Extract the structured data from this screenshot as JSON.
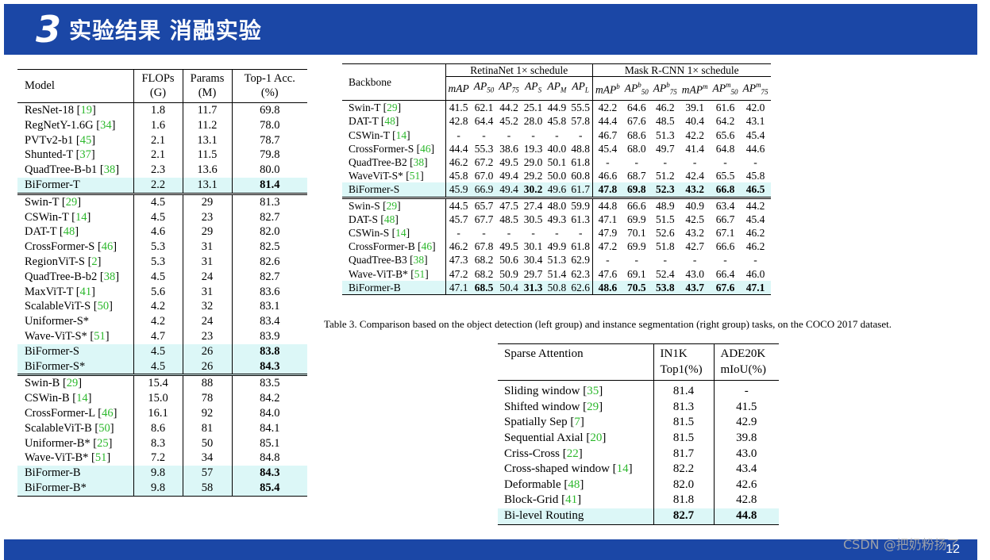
{
  "header": {
    "num": "3",
    "title": "实验结果  消融实验"
  },
  "footer": {
    "page": "12",
    "watermark": "CSDN @把奶粉扬了"
  },
  "table1": {
    "columns": [
      [
        "Model"
      ],
      [
        "FLOPs",
        "(G)"
      ],
      [
        "Params",
        "(M)"
      ],
      [
        "Top-1 Acc.",
        "(%)"
      ]
    ],
    "groups": [
      [
        {
          "name": "ResNet-18",
          "ref": "19",
          "flops": "1.8",
          "params": "11.7",
          "acc": "69.8"
        },
        {
          "name": "RegNetY-1.6G",
          "ref": "34",
          "flops": "1.6",
          "params": "11.2",
          "acc": "78.0"
        },
        {
          "name": "PVTv2-b1",
          "ref": "45",
          "flops": "2.1",
          "params": "13.1",
          "acc": "78.7"
        },
        {
          "name": "Shunted-T",
          "ref": "37",
          "flops": "2.1",
          "params": "11.5",
          "acc": "79.8"
        },
        {
          "name": "QuadTree-B-b1",
          "ref": "38",
          "flops": "2.3",
          "params": "13.6",
          "acc": "80.0"
        },
        {
          "name": "BiFormer-T",
          "flops": "2.2",
          "params": "13.1",
          "acc": "81.4",
          "hl": true,
          "bold": true
        }
      ],
      [
        {
          "name": "Swin-T",
          "ref": "29",
          "flops": "4.5",
          "params": "29",
          "acc": "81.3"
        },
        {
          "name": "CSWin-T",
          "ref": "14",
          "flops": "4.5",
          "params": "23",
          "acc": "82.7"
        },
        {
          "name": "DAT-T",
          "ref": "48",
          "flops": "4.6",
          "params": "29",
          "acc": "82.0"
        },
        {
          "name": "CrossFormer-S",
          "ref": "46",
          "flops": "5.3",
          "params": "31",
          "acc": "82.5"
        },
        {
          "name": "RegionViT-S",
          "ref": "2",
          "flops": "5.3",
          "params": "31",
          "acc": "82.6"
        },
        {
          "name": "QuadTree-B-b2",
          "ref": "38",
          "flops": "4.5",
          "params": "24",
          "acc": "82.7"
        },
        {
          "name": "MaxViT-T",
          "ref": "41",
          "flops": "5.6",
          "params": "31",
          "acc": "83.6"
        },
        {
          "name": "ScalableViT-S",
          "ref": "50",
          "flops": "4.2",
          "params": "32",
          "acc": "83.1"
        },
        {
          "name": "Uniformer-S*",
          "flops": "4.2",
          "params": "24",
          "acc": "83.4"
        },
        {
          "name": "Wave-ViT-S*",
          "ref": "51",
          "flops": "4.7",
          "params": "23",
          "acc": "83.9"
        },
        {
          "name": "BiFormer-S",
          "flops": "4.5",
          "params": "26",
          "acc": "83.8",
          "hl": true,
          "bold": true
        },
        {
          "name": "BiFormer-S*",
          "flops": "4.5",
          "params": "26",
          "acc": "84.3",
          "hl": true,
          "bold": true
        }
      ],
      [
        {
          "name": "Swin-B",
          "ref": "29",
          "flops": "15.4",
          "params": "88",
          "acc": "83.5"
        },
        {
          "name": "CSWin-B",
          "ref": "14",
          "flops": "15.0",
          "params": "78",
          "acc": "84.2"
        },
        {
          "name": "CrossFormer-L",
          "ref": "46",
          "flops": "16.1",
          "params": "92",
          "acc": "84.0"
        },
        {
          "name": "ScalableViT-B",
          "ref": "50",
          "flops": "8.6",
          "params": "81",
          "acc": "84.1"
        },
        {
          "name": "Uniformer-B*",
          "ref": "25",
          "flops": "8.3",
          "params": "50",
          "acc": "85.1"
        },
        {
          "name": "Wave-ViT-B*",
          "ref": "51",
          "flops": "7.2",
          "params": "34",
          "acc": "84.8"
        },
        {
          "name": "BiFormer-B",
          "flops": "9.8",
          "params": "57",
          "acc": "84.3",
          "hl": true,
          "bold": true
        },
        {
          "name": "BiFormer-B*",
          "flops": "9.8",
          "params": "58",
          "acc": "85.4",
          "hl": true,
          "bold": true
        }
      ]
    ]
  },
  "table3": {
    "backbone_label": "Backbone",
    "group_left": "RetinaNet 1× schedule",
    "group_right": "Mask R-CNN 1× schedule",
    "metric_bases": [
      "mAP",
      "AP",
      "AP",
      "AP",
      "AP",
      "AP",
      "mAP",
      "AP",
      "AP",
      "mAP",
      "AP",
      "AP"
    ],
    "metric_subs": [
      "",
      "50",
      "75",
      "S",
      "M",
      "L",
      "",
      "50",
      "75",
      "",
      "50",
      "75"
    ],
    "metric_sups": [
      "",
      "",
      "",
      "",
      "",
      "",
      "b",
      "b",
      "b",
      "m",
      "m",
      "m"
    ],
    "groups": [
      [
        {
          "name": "Swin-T",
          "ref": "29",
          "v": [
            "41.5",
            "62.1",
            "44.2",
            "25.1",
            "44.9",
            "55.5",
            "42.2",
            "64.6",
            "46.2",
            "39.1",
            "61.6",
            "42.0"
          ]
        },
        {
          "name": "DAT-T",
          "ref": "48",
          "v": [
            "42.8",
            "64.4",
            "45.2",
            "28.0",
            "45.8",
            "57.8",
            "44.4",
            "67.6",
            "48.5",
            "40.4",
            "64.2",
            "43.1"
          ]
        },
        {
          "name": "CSWin-T",
          "ref": "14",
          "v": [
            "-",
            "-",
            "-",
            "-",
            "-",
            "-",
            "46.7",
            "68.6",
            "51.3",
            "42.2",
            "65.6",
            "45.4"
          ]
        },
        {
          "name": "CrossFormer-S",
          "ref": "46",
          "v": [
            "44.4",
            "55.3",
            "38.6",
            "19.3",
            "40.0",
            "48.8",
            "45.4",
            "68.0",
            "49.7",
            "41.4",
            "64.8",
            "44.6"
          ]
        },
        {
          "name": "QuadTree-B2",
          "ref": "38",
          "v": [
            "46.2",
            "67.2",
            "49.5",
            "29.0",
            "50.1",
            "61.8",
            "-",
            "-",
            "-",
            "-",
            "-",
            "-"
          ]
        },
        {
          "name": "WaveViT-S*",
          "ref": "51",
          "v": [
            "45.8",
            "67.0",
            "49.4",
            "29.2",
            "50.0",
            "60.8",
            "46.6",
            "68.7",
            "51.2",
            "42.4",
            "65.5",
            "45.8"
          ]
        },
        {
          "name": "BiFormer-S",
          "hl": true,
          "v": [
            "45.9",
            "66.9",
            "49.4",
            "30.2",
            "49.6",
            "61.7",
            "47.8",
            "69.8",
            "52.3",
            "43.2",
            "66.8",
            "46.5"
          ],
          "bold": [
            3,
            6,
            7,
            8,
            9,
            10,
            11
          ]
        }
      ],
      [
        {
          "name": "Swin-S",
          "ref": "29",
          "v": [
            "44.5",
            "65.7",
            "47.5",
            "27.4",
            "48.0",
            "59.9",
            "44.8",
            "66.6",
            "48.9",
            "40.9",
            "63.4",
            "44.2"
          ]
        },
        {
          "name": "DAT-S",
          "ref": "48",
          "v": [
            "45.7",
            "67.7",
            "48.5",
            "30.5",
            "49.3",
            "61.3",
            "47.1",
            "69.9",
            "51.5",
            "42.5",
            "66.7",
            "45.4"
          ]
        },
        {
          "name": "CSWin-S",
          "ref": "14",
          "v": [
            "-",
            "-",
            "-",
            "-",
            "-",
            "-",
            "47.9",
            "70.1",
            "52.6",
            "43.2",
            "67.1",
            "46.2"
          ]
        },
        {
          "name": "CrossFormer-B",
          "ref": "46",
          "v": [
            "46.2",
            "67.8",
            "49.5",
            "30.1",
            "49.9",
            "61.8",
            "47.2",
            "69.9",
            "51.8",
            "42.7",
            "66.6",
            "46.2"
          ]
        },
        {
          "name": "QuadTree-B3",
          "ref": "38",
          "v": [
            "47.3",
            "68.2",
            "50.6",
            "30.4",
            "51.3",
            "62.9",
            "-",
            "-",
            "-",
            "-",
            "-",
            "-"
          ]
        },
        {
          "name": "Wave-ViT-B*",
          "ref": "51",
          "v": [
            "47.2",
            "68.2",
            "50.9",
            "29.7",
            "51.4",
            "62.3",
            "47.6",
            "69.1",
            "52.4",
            "43.0",
            "66.4",
            "46.0"
          ]
        },
        {
          "name": "BiFormer-B",
          "hl": true,
          "v": [
            "47.1",
            "68.5",
            "50.4",
            "31.3",
            "50.8",
            "62.6",
            "48.6",
            "70.5",
            "53.8",
            "43.7",
            "67.6",
            "47.1"
          ],
          "bold": [
            1,
            3,
            6,
            7,
            8,
            9,
            10,
            11
          ]
        }
      ]
    ],
    "caption": "Table 3. Comparison based on the object detection (left group) and instance segmentation (right group) tasks, on the COCO 2017 dataset."
  },
  "table4": {
    "header": [
      "Sparse Attention",
      "IN1K",
      "Top1(%)",
      "ADE20K",
      "mIoU(%)"
    ],
    "rows": [
      {
        "name": "Sliding window",
        "ref": "35",
        "in1k": "81.4",
        "ade": "-"
      },
      {
        "name": "Shifted window",
        "ref": "29",
        "in1k": "81.3",
        "ade": "41.5"
      },
      {
        "name": "Spatially Sep",
        "ref": "7",
        "in1k": "81.5",
        "ade": "42.9"
      },
      {
        "name": "Sequential Axial",
        "ref": "20",
        "in1k": "81.5",
        "ade": "39.8"
      },
      {
        "name": "Criss-Cross",
        "ref": "22",
        "in1k": "81.7",
        "ade": "43.0"
      },
      {
        "name": "Cross-shaped window",
        "ref": "14",
        "in1k": "82.2",
        "ade": "43.4"
      },
      {
        "name": "Deformable",
        "ref": "48",
        "in1k": "82.0",
        "ade": "42.6"
      },
      {
        "name": "Block-Grid",
        "ref": "41",
        "in1k": "81.8",
        "ade": "42.8"
      },
      {
        "name": "Bi-level Routing",
        "in1k": "82.7",
        "ade": "44.8",
        "hl": true,
        "bold": true
      }
    ]
  }
}
